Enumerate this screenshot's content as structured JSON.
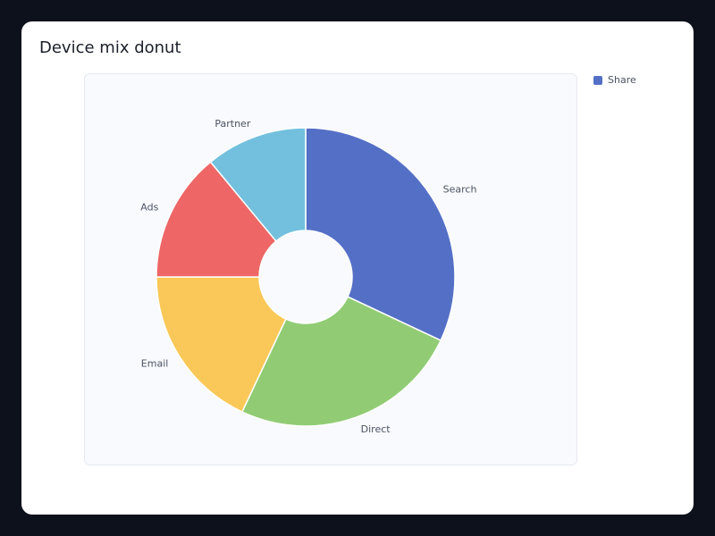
{
  "chart_data": {
    "type": "pie",
    "title": "Device mix donut",
    "categories": [
      "Search",
      "Direct",
      "Email",
      "Ads",
      "Partner"
    ],
    "series": [
      {
        "name": "Share",
        "values": [
          32,
          25,
          18,
          14,
          11
        ]
      }
    ],
    "colors": [
      "#5470c6",
      "#91cc75",
      "#fac858",
      "#ee6666",
      "#73c0de"
    ],
    "donut": true,
    "legend": "top-right"
  }
}
